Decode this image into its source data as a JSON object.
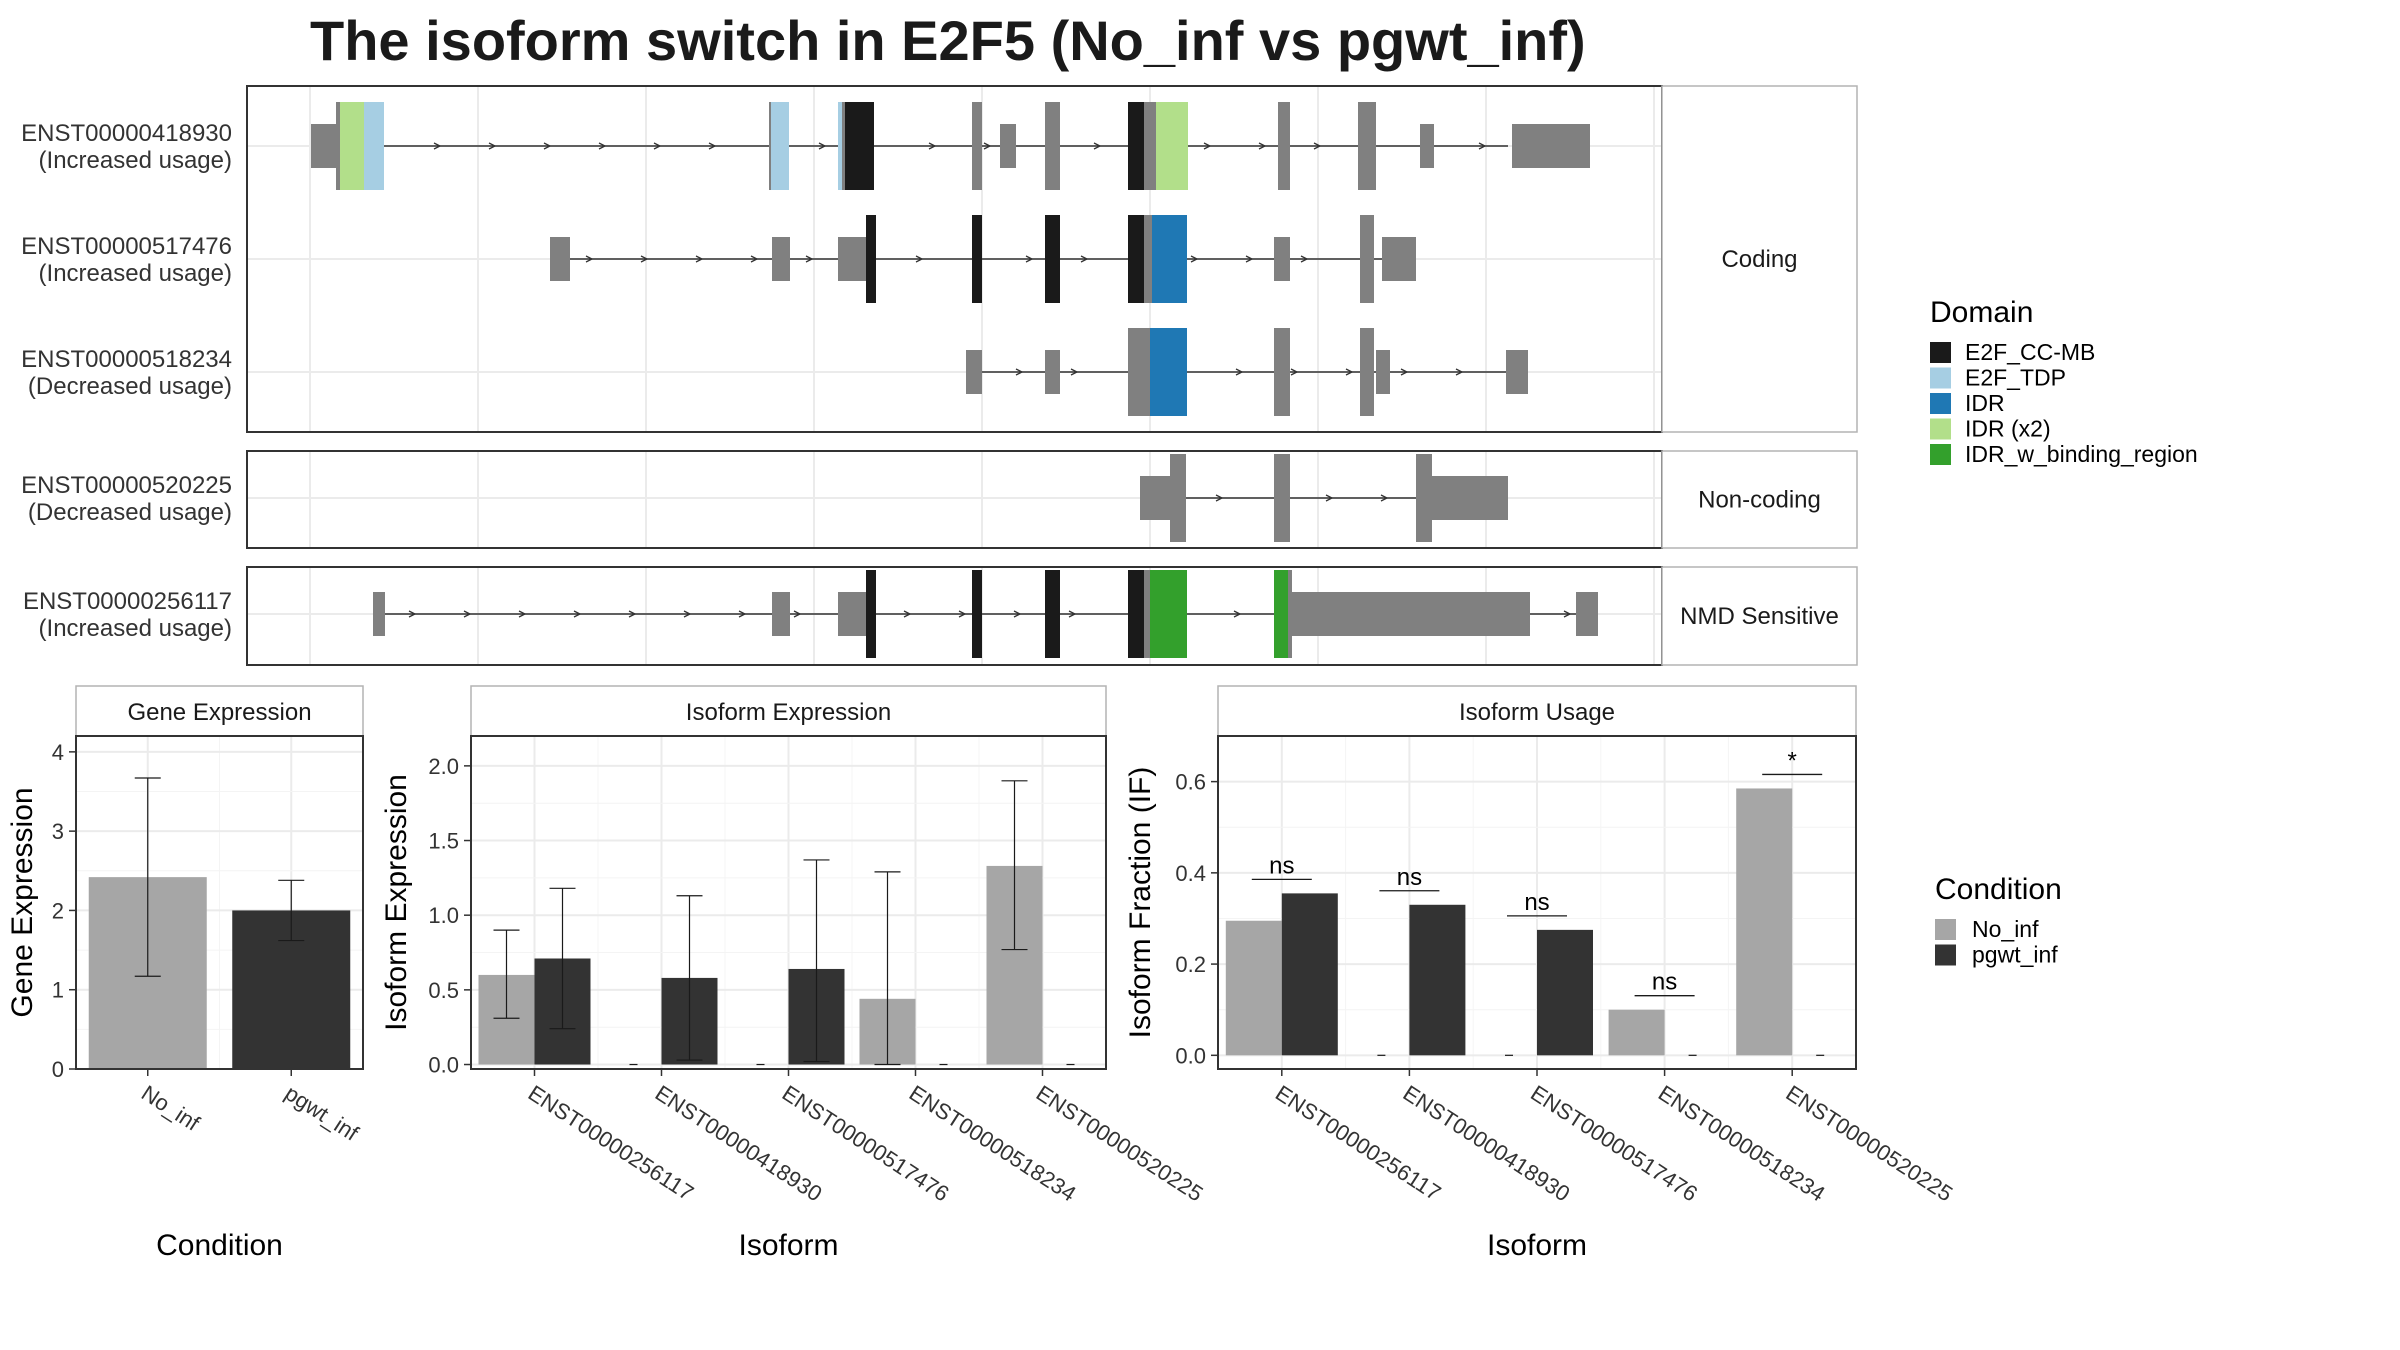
{
  "title": "The isoform switch in E2F5 (No_inf vs pgwt_inf)",
  "colors": {
    "exon": "#808080",
    "No_inf": "#a6a6a6",
    "pgwt_inf": "#333333",
    "E2F_CC-MB": "#1a1a1a",
    "E2F_TDP": "#a6cee3",
    "IDR": "#1f78b4",
    "IDR (x2)": "#b2df8a",
    "IDR_w_binding_region": "#33a02c"
  },
  "chart_data": [
    {
      "type": "gene-structure",
      "panels": [
        "Coding",
        "Non-coding",
        "NMD Sensitive"
      ],
      "transcripts": [
        {
          "id": "ENST00000418930",
          "usage": "(Increased usage)",
          "panel": "Coding"
        },
        {
          "id": "ENST00000517476",
          "usage": "(Increased usage)",
          "panel": "Coding"
        },
        {
          "id": "ENST00000518234",
          "usage": "(Decreased usage)",
          "panel": "Coding"
        },
        {
          "id": "ENST00000520225",
          "usage": "(Decreased usage)",
          "panel": "Non-coding"
        },
        {
          "id": "ENST00000256117",
          "usage": "(Increased usage)",
          "panel": "NMD Sensitive"
        }
      ],
      "legend": {
        "title": "Domain",
        "entries": [
          "E2F_CC-MB",
          "E2F_TDP",
          "IDR",
          "IDR (x2)",
          "IDR_w_binding_region"
        ]
      }
    },
    {
      "type": "bar",
      "title": "Gene Expression",
      "xlabel": "Condition",
      "ylabel": "Gene Expression",
      "categories": [
        "No_inf",
        "pgwt_inf"
      ],
      "values": [
        2.42,
        2.0
      ],
      "error_low": [
        1.17,
        1.62
      ],
      "error_high": [
        3.67,
        2.38
      ],
      "ylim": [
        0,
        4.2
      ],
      "yticks": [
        0,
        1,
        2,
        3,
        4
      ]
    },
    {
      "type": "bar",
      "title": "Isoform Expression",
      "xlabel": "Isoform",
      "ylabel": "Isoform Expression",
      "categories": [
        "ENST00000256117",
        "ENST00000418930",
        "ENST00000517476",
        "ENST00000518234",
        "ENST00000520225"
      ],
      "series": [
        {
          "name": "No_inf",
          "values": [
            0.6,
            0.0,
            0.0,
            0.44,
            1.33
          ],
          "error_low": [
            0.31,
            null,
            null,
            0.0,
            0.77
          ],
          "error_high": [
            0.9,
            null,
            null,
            1.29,
            1.9
          ]
        },
        {
          "name": "pgwt_inf",
          "values": [
            0.71,
            0.58,
            0.64,
            0.0,
            0.0
          ],
          "error_low": [
            0.24,
            0.03,
            0.02,
            null,
            null
          ],
          "error_high": [
            1.18,
            1.13,
            1.37,
            null,
            null
          ]
        }
      ],
      "ylim": [
        -0.03,
        2.2
      ],
      "yticks": [
        0.0,
        0.5,
        1.0,
        1.5,
        2.0
      ]
    },
    {
      "type": "bar",
      "title": "Isoform Usage",
      "xlabel": "Isoform",
      "ylabel": "Isoform Fraction (IF)",
      "categories": [
        "ENST00000256117",
        "ENST00000418930",
        "ENST00000517476",
        "ENST00000518234",
        "ENST00000520225"
      ],
      "series": [
        {
          "name": "No_inf",
          "values": [
            0.295,
            0.0,
            0.0,
            0.1,
            0.585
          ]
        },
        {
          "name": "pgwt_inf",
          "values": [
            0.355,
            0.33,
            0.275,
            0.0,
            0.0
          ]
        }
      ],
      "significance": [
        "ns",
        "ns",
        "ns",
        "ns",
        "*"
      ],
      "ylim": [
        -0.03,
        0.7
      ],
      "yticks": [
        0.0,
        0.2,
        0.4,
        0.6
      ],
      "legend": {
        "title": "Condition",
        "entries": [
          "No_inf",
          "pgwt_inf"
        ]
      }
    }
  ]
}
